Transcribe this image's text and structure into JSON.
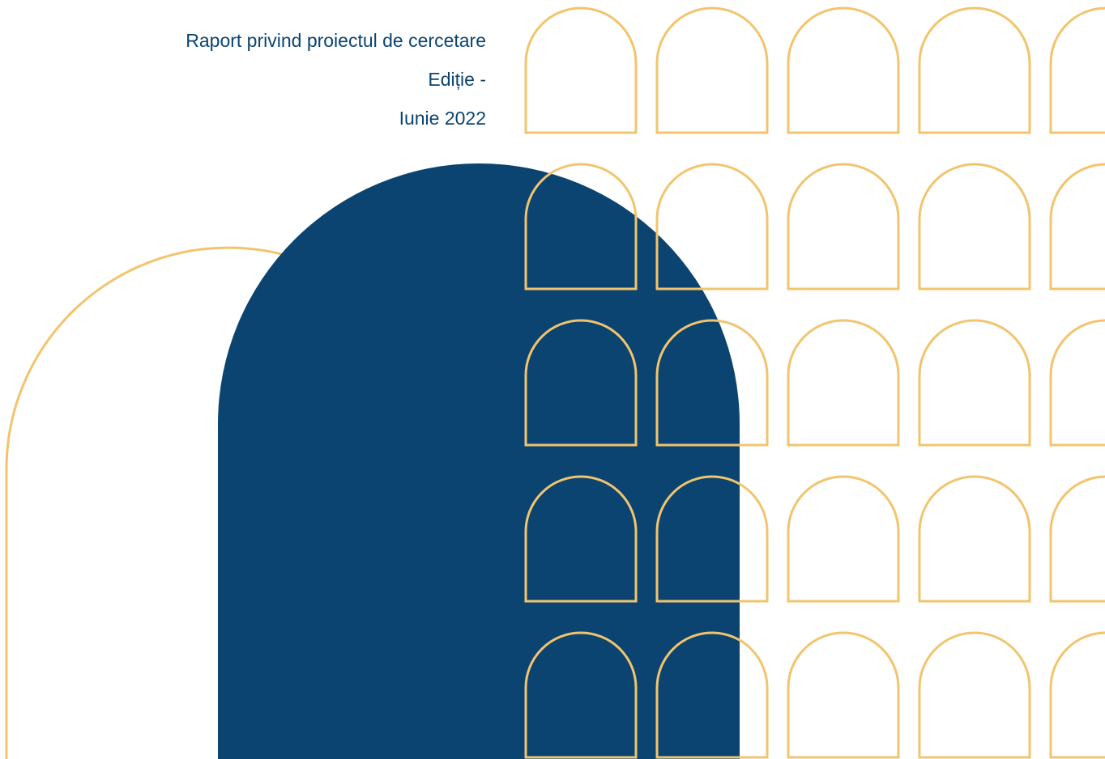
{
  "report": {
    "title": "Raport privind proiectul de cercetare",
    "edition": "Ediție -",
    "date": "Iunie 2022"
  },
  "colors": {
    "text": "#0b4471",
    "navy_arch": "#0b4471",
    "gold_outline": "#f2c46d",
    "background": "#ffffff"
  }
}
